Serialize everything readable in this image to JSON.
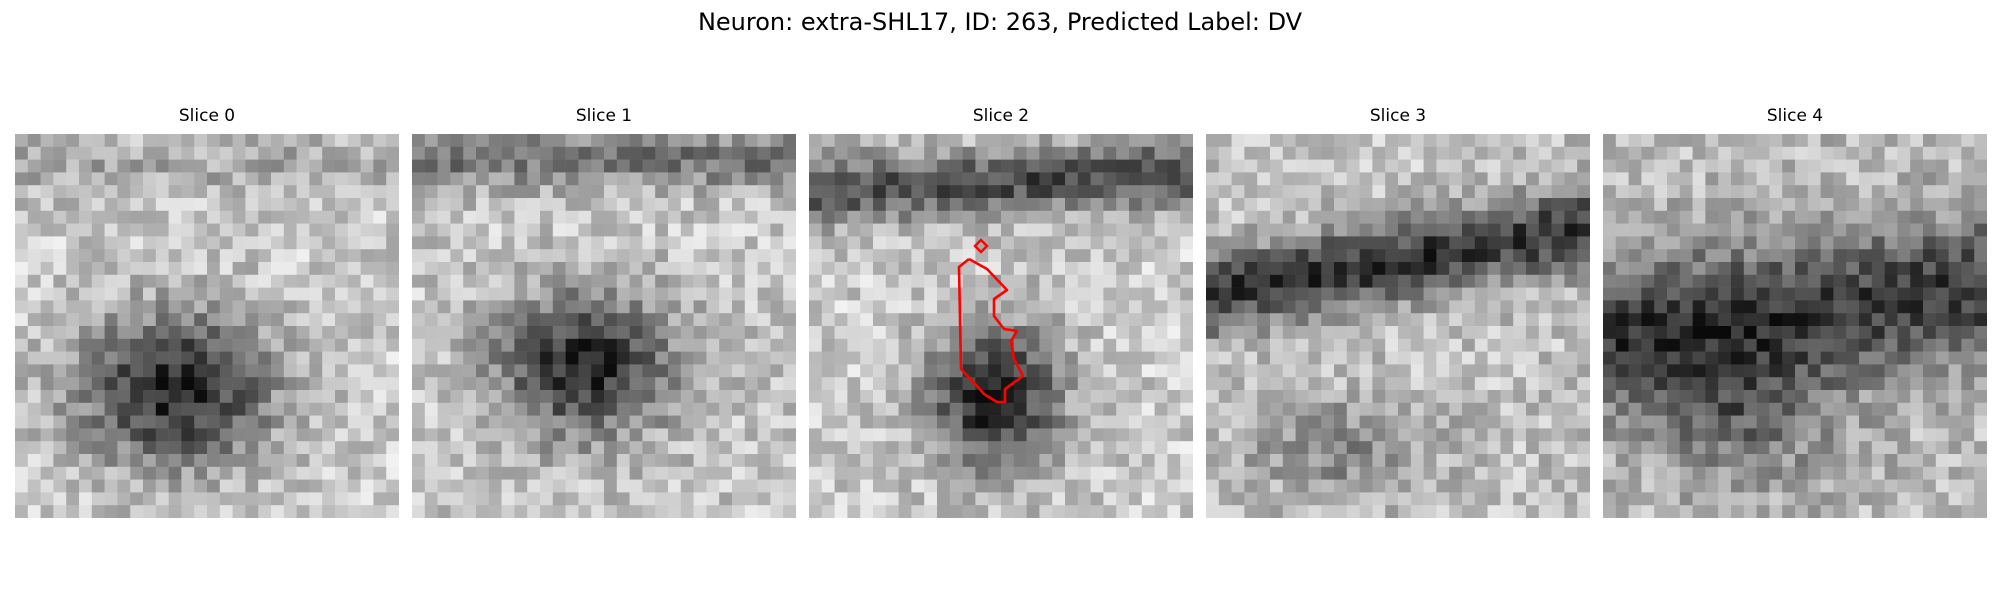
{
  "figure": {
    "title": "Neuron: extra-SHL17, ID: 263, Predicted Label: DV"
  },
  "slices": [
    {
      "label": "Slice 0"
    },
    {
      "label": "Slice 1"
    },
    {
      "label": "Slice 2"
    },
    {
      "label": "Slice 3"
    },
    {
      "label": "Slice 4"
    }
  ],
  "outline": {
    "slice_index": 2,
    "color": "#ff0000"
  },
  "colors": {
    "background": "#ffffff",
    "text": "#000000"
  }
}
